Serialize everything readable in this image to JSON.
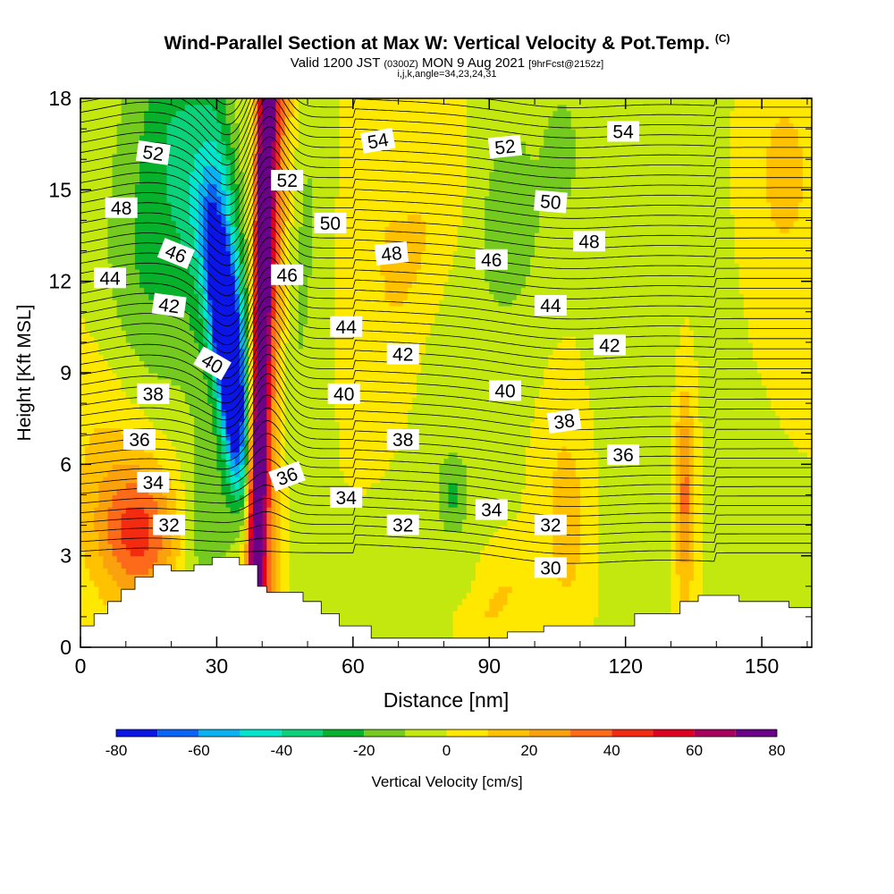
{
  "title": {
    "main": "Wind-Parallel Section at Max W: Vertical Velocity & Pot.Temp.",
    "copyright": "(C)",
    "valid_prefix": "Valid 1200 JST",
    "valid_zulu": "(0300Z)",
    "valid_date": "MON 9 Aug 2021",
    "forecast": "[9hrFcst@2152z]",
    "indices": "i,j,k,angle=34,23,24,31"
  },
  "chart_data": {
    "type": "heatmap",
    "xlabel": "Distance [nm]",
    "ylabel": "Height [Kft MSL]",
    "xlim": [
      0,
      161
    ],
    "ylim": [
      0,
      18
    ],
    "x_ticks": [
      0,
      30,
      60,
      90,
      120,
      150
    ],
    "y_ticks": [
      0,
      3,
      6,
      9,
      12,
      15,
      18
    ],
    "grid": false,
    "colorbar": {
      "label": "Vertical Velocity [cm/s]",
      "placement": "bottom",
      "ticks": [
        -80,
        -60,
        -40,
        -20,
        0,
        20,
        40,
        60,
        80
      ],
      "levels": [
        -80,
        -70,
        -60,
        -50,
        -40,
        -30,
        -20,
        -10,
        0,
        10,
        20,
        30,
        40,
        50,
        60,
        70,
        80
      ],
      "colors": [
        "#0b15e6",
        "#0a64f5",
        "#09b2f0",
        "#00e6cc",
        "#0bd17b",
        "#08b12b",
        "#74ca1e",
        "#c2e80f",
        "#ffe800",
        "#ffc100",
        "#f9a20d",
        "#fd6a1a",
        "#f32b10",
        "#df0021",
        "#a8005c",
        "#6b0089"
      ]
    },
    "terrain_nm_kft": [
      [
        0,
        0.7
      ],
      [
        3,
        0.7
      ],
      [
        3,
        1.1
      ],
      [
        6,
        1.1
      ],
      [
        6,
        1.5
      ],
      [
        9,
        1.5
      ],
      [
        9,
        1.9
      ],
      [
        12,
        1.9
      ],
      [
        12,
        2.3
      ],
      [
        16,
        2.3
      ],
      [
        16,
        2.7
      ],
      [
        20,
        2.7
      ],
      [
        20,
        2.5
      ],
      [
        25,
        2.5
      ],
      [
        25,
        2.7
      ],
      [
        29,
        2.7
      ],
      [
        29,
        2.95
      ],
      [
        35,
        2.95
      ],
      [
        35,
        2.7
      ],
      [
        39,
        2.7
      ],
      [
        39,
        2.0
      ],
      [
        41,
        2.0
      ],
      [
        41,
        1.8
      ],
      [
        49,
        1.8
      ],
      [
        49,
        1.5
      ],
      [
        53,
        1.5
      ],
      [
        53,
        1.1
      ],
      [
        57,
        1.1
      ],
      [
        57,
        0.7
      ],
      [
        64,
        0.7
      ],
      [
        64,
        0.3
      ],
      [
        94,
        0.3
      ],
      [
        94,
        0.5
      ],
      [
        102,
        0.5
      ],
      [
        102,
        0.7
      ],
      [
        122,
        0.7
      ],
      [
        122,
        1.1
      ],
      [
        132,
        1.1
      ],
      [
        132,
        1.5
      ],
      [
        136,
        1.5
      ],
      [
        136,
        1.7
      ],
      [
        145,
        1.7
      ],
      [
        145,
        1.5
      ],
      [
        156,
        1.5
      ],
      [
        156,
        1.3
      ],
      [
        161,
        1.3
      ]
    ],
    "wfield": {
      "background": 0,
      "features": [
        {
          "x0": 38.5,
          "y0": 2.2,
          "x1": 41,
          "y1": 18,
          "sx": 1.3,
          "sz": 16,
          "amp": 80
        },
        {
          "x0": 39.8,
          "y0": 2.2,
          "x1": 42.8,
          "y1": 18,
          "sx": 2.8,
          "sz": 16,
          "amp": 45
        },
        {
          "x0": 37,
          "y0": 2.5,
          "x1": 28,
          "y1": 16,
          "sx": 1.7,
          "sz": 2.5,
          "amp": -80
        },
        {
          "x0": 35,
          "y0": 8,
          "x1": 30,
          "y1": 14,
          "sx": 3,
          "sz": 4,
          "amp": -50
        },
        {
          "x0": 31,
          "y0": 11,
          "x1": 24,
          "y1": 17,
          "sx": 6,
          "sz": 5,
          "amp": -30
        },
        {
          "x0": 14,
          "y0": 8,
          "x1": 15,
          "y1": 17,
          "sx": 7,
          "sz": 5,
          "amp": -22
        },
        {
          "x0": 44,
          "y0": 6,
          "x1": 50,
          "y1": 17,
          "sx": 4,
          "sz": 6,
          "amp": -14
        },
        {
          "x0": 13,
          "y0": 2.5,
          "x1": 13,
          "y1": 5,
          "sx": 6,
          "sz": 1.5,
          "amp": 38
        },
        {
          "x0": 9,
          "y0": 2,
          "x1": 9,
          "y1": 10,
          "sx": 8,
          "sz": 3,
          "amp": 18
        },
        {
          "x0": 27,
          "y0": 3,
          "x1": 27,
          "y1": 5,
          "sx": 3,
          "sz": 1.5,
          "amp": -18
        },
        {
          "x0": 95,
          "y0": 11,
          "x1": 95,
          "y1": 17.5,
          "sx": 5,
          "sz": 2.5,
          "amp": -14
        },
        {
          "x0": 106,
          "y0": 15,
          "x1": 106,
          "y1": 17.5,
          "sx": 3,
          "sz": 1.5,
          "amp": -15
        },
        {
          "x0": 82,
          "y0": 4,
          "x1": 82,
          "y1": 6,
          "sx": 2.5,
          "sz": 1,
          "amp": -20
        },
        {
          "x0": 81,
          "y0": 9,
          "x1": 88,
          "y1": 14,
          "sx": 9,
          "sz": 4,
          "amp": -6
        },
        {
          "x0": 124,
          "y0": 1.5,
          "x1": 124,
          "y1": 17,
          "sx": 8,
          "sz": 8,
          "amp": -5
        },
        {
          "x0": 107,
          "y0": 1.5,
          "x1": 107,
          "y1": 7,
          "sx": 3.5,
          "sz": 2.5,
          "amp": 16
        },
        {
          "x0": 133,
          "y0": 2,
          "x1": 133,
          "y1": 8,
          "sx": 1.5,
          "sz": 2.5,
          "amp": 35
        },
        {
          "x0": 155,
          "y0": 13,
          "x1": 155,
          "y1": 18,
          "sx": 4,
          "sz": 2,
          "amp": 16
        },
        {
          "x0": 70,
          "y0": 10,
          "x1": 80,
          "y1": 16,
          "sx": 6,
          "sz": 3,
          "amp": 12
        },
        {
          "x0": 90,
          "y0": 1,
          "x1": 94,
          "y1": 2,
          "sx": 3,
          "sz": 1,
          "amp": 12
        },
        {
          "x0": 65,
          "y0": 12,
          "x1": 65,
          "y1": 18,
          "sx": 5,
          "sz": 3,
          "amp": 8
        }
      ]
    },
    "theta_labels": [
      {
        "v": "52",
        "x": 16,
        "y": 16.2,
        "a": 8
      },
      {
        "v": "48",
        "x": 9,
        "y": 14.4,
        "a": 0
      },
      {
        "v": "46",
        "x": 21,
        "y": 12.9,
        "a": 22
      },
      {
        "v": "44",
        "x": 6.5,
        "y": 12.1,
        "a": 0
      },
      {
        "v": "42",
        "x": 19.5,
        "y": 11.2,
        "a": 8
      },
      {
        "v": "40",
        "x": 29,
        "y": 9.3,
        "a": 30
      },
      {
        "v": "38",
        "x": 16,
        "y": 8.3,
        "a": 0
      },
      {
        "v": "36",
        "x": 13,
        "y": 6.8,
        "a": 0
      },
      {
        "v": "34",
        "x": 16,
        "y": 5.4,
        "a": 0
      },
      {
        "v": "32",
        "x": 19.5,
        "y": 4,
        "a": 0
      },
      {
        "v": "52",
        "x": 45.5,
        "y": 15.3,
        "a": 0
      },
      {
        "v": "46",
        "x": 45.5,
        "y": 12.2,
        "a": 0
      },
      {
        "v": "36",
        "x": 45.5,
        "y": 5.6,
        "a": -20
      },
      {
        "v": "54",
        "x": 65.5,
        "y": 16.6,
        "a": -10
      },
      {
        "v": "50",
        "x": 55,
        "y": 13.9,
        "a": 0
      },
      {
        "v": "48",
        "x": 68.5,
        "y": 12.9,
        "a": -6
      },
      {
        "v": "44",
        "x": 58.5,
        "y": 10.5,
        "a": 0
      },
      {
        "v": "42",
        "x": 71,
        "y": 9.6,
        "a": 0
      },
      {
        "v": "40",
        "x": 58,
        "y": 8.3,
        "a": 0
      },
      {
        "v": "38",
        "x": 71,
        "y": 6.8,
        "a": 0
      },
      {
        "v": "34",
        "x": 58.5,
        "y": 4.9,
        "a": 0
      },
      {
        "v": "32",
        "x": 71,
        "y": 4,
        "a": 0
      },
      {
        "v": "52",
        "x": 93.5,
        "y": 16.4,
        "a": -6
      },
      {
        "v": "50",
        "x": 103.5,
        "y": 14.6,
        "a": 5
      },
      {
        "v": "46",
        "x": 90.5,
        "y": 12.7,
        "a": 0
      },
      {
        "v": "48",
        "x": 112,
        "y": 13.3,
        "a": 0
      },
      {
        "v": "44",
        "x": 103.5,
        "y": 11.2,
        "a": 0
      },
      {
        "v": "42",
        "x": 116.5,
        "y": 9.9,
        "a": 0
      },
      {
        "v": "40",
        "x": 93.5,
        "y": 8.4,
        "a": 0
      },
      {
        "v": "38",
        "x": 106.5,
        "y": 7.4,
        "a": -8
      },
      {
        "v": "36",
        "x": 119.5,
        "y": 6.3,
        "a": 0
      },
      {
        "v": "34",
        "x": 90.5,
        "y": 4.5,
        "a": 0
      },
      {
        "v": "32",
        "x": 103.5,
        "y": 4,
        "a": 0
      },
      {
        "v": "30",
        "x": 103.5,
        "y": 2.6,
        "a": 0
      },
      {
        "v": "54",
        "x": 119.5,
        "y": 16.9,
        "a": 0
      }
    ]
  }
}
